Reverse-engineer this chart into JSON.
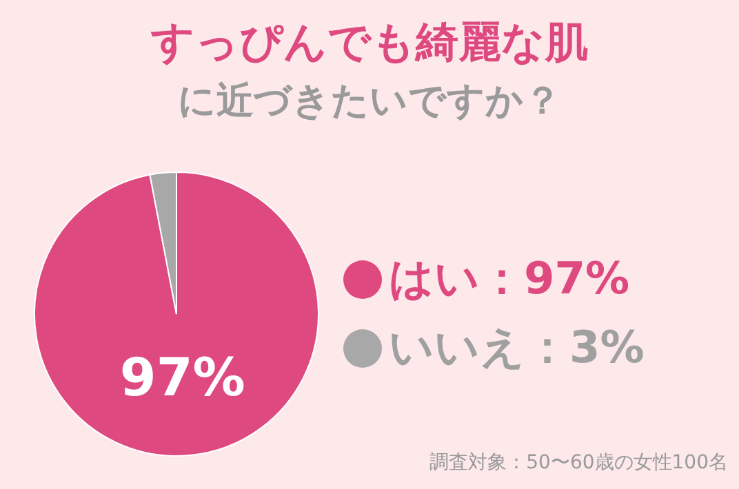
{
  "chart_data": {
    "type": "pie",
    "title": "すっぴんでも綺麗な肌",
    "subtitle": "に近づきたいですか？",
    "categories": [
      "はい：97%",
      "いいえ：3%"
    ],
    "values": [
      97,
      3
    ],
    "colors": [
      "#de4a80",
      "#a8a8a8"
    ],
    "value_labels": [
      "97%",
      null
    ],
    "legend": "right",
    "annotations": [
      "調査対象：50〜60歳の女性100名"
    ]
  }
}
